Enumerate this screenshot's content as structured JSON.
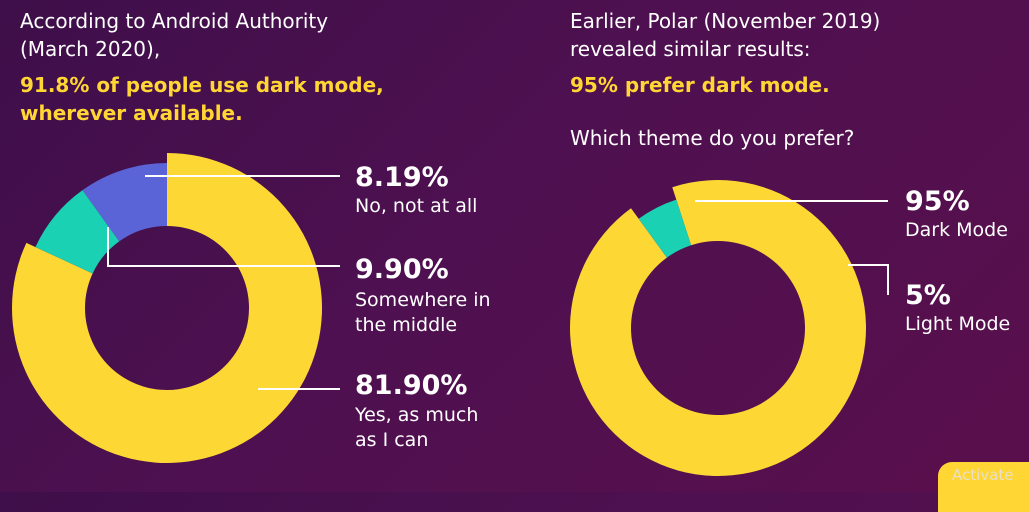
{
  "left": {
    "intro": [
      "According to Android Authority",
      "(March 2020),"
    ],
    "highlight": [
      "91.8% of people use dark mode,",
      "wherever available."
    ]
  },
  "right": {
    "intro": [
      "Earlier, Polar (November 2019)",
      "revealed similar results:"
    ],
    "highlight": "95% prefer dark mode.",
    "question": "Which theme do you prefer?"
  },
  "chart_data": [
    {
      "type": "pie",
      "donut": true,
      "labels": [
        "Yes, as much as I can",
        "No, not at all",
        "Somewhere in the middle"
      ],
      "values": [
        81.9,
        8.19,
        9.9
      ],
      "value_labels": [
        "81.90%",
        "8.19%",
        "9.90%"
      ],
      "colors": [
        "#fdd835",
        "#1bd1b4",
        "#5a64d6"
      ],
      "label_lines": {
        "yes": [
          "Yes, as much",
          "as I can"
        ],
        "no": [
          "No, not at all"
        ],
        "middle": [
          "Somewhere in",
          "the middle"
        ]
      }
    },
    {
      "type": "pie",
      "donut": true,
      "labels": [
        "Dark Mode",
        "Light Mode"
      ],
      "values": [
        95,
        5
      ],
      "value_labels": [
        "95%",
        "5%"
      ],
      "colors": [
        "#fdd835",
        "#1bd1b4"
      ]
    }
  ],
  "watermark": "Activate"
}
